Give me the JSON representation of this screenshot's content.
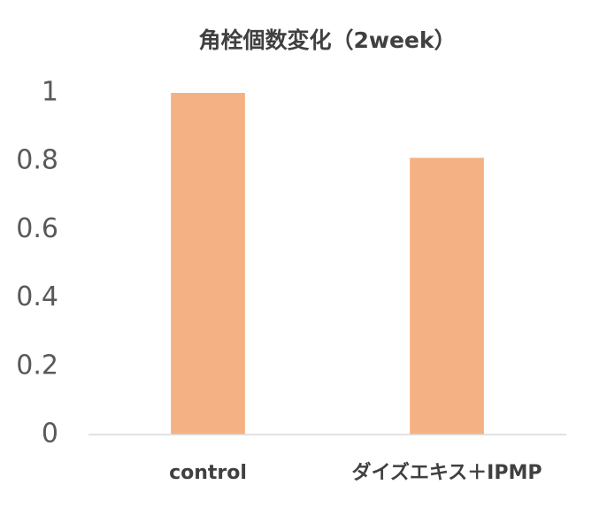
{
  "chart_data": {
    "type": "bar",
    "title": "角栓個数変化（2week）",
    "categories": [
      "control",
      "ダイズエキス＋IPMP"
    ],
    "values": [
      1,
      0.81
    ],
    "color": "#f4b183",
    "ylim": [
      0,
      1
    ],
    "yticks": [
      0,
      0.2,
      0.4,
      0.6,
      0.8,
      1
    ],
    "grid": false
  }
}
